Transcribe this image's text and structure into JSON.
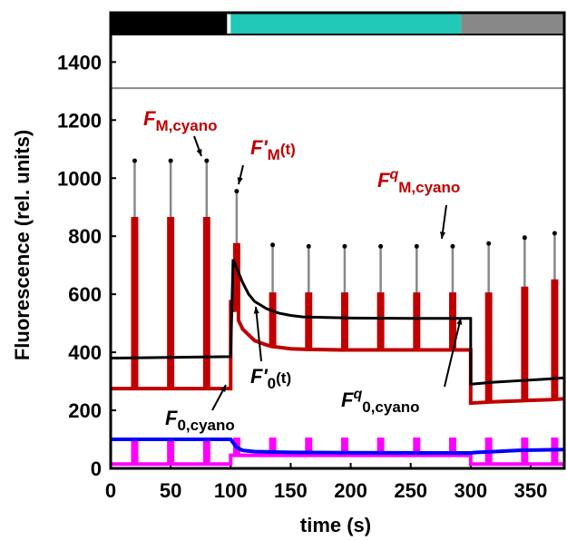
{
  "chart_data": {
    "type": "line",
    "xlabel": "time (s)",
    "ylabel": "Fluorescence (rel. units)",
    "xlim": [
      0,
      378
    ],
    "ylim": [
      0,
      1570
    ],
    "xticks": [
      0,
      50,
      100,
      150,
      200,
      250,
      300,
      350
    ],
    "yticks": [
      0,
      200,
      400,
      600,
      800,
      1000,
      1200,
      1400
    ],
    "light_periods": {
      "start": [
        0,
        100,
        292
      ],
      "end": [
        97,
        292,
        378
      ],
      "color": [
        "#000000",
        "#22c8b8",
        "#888888"
      ]
    },
    "series": [
      {
        "color": "#888888",
        "width": 2,
        "x": [
          0,
          378
        ],
        "values": [
          1310,
          1310
        ]
      },
      {
        "color": "#c00000",
        "width": 4,
        "x": [
          0,
          18.5,
          18.5,
          21.5,
          21.5,
          48.5,
          48.5,
          51.5,
          51.5,
          78.5,
          78.5,
          81.5,
          81.5,
          100,
          100,
          103.5,
          103.5,
          106.5,
          106.5,
          110,
          120,
          130,
          133.5,
          133.5,
          136.5,
          136.5,
          150,
          163.5,
          163.5,
          166.5,
          166.5,
          193.5,
          193.5,
          196.5,
          196.5,
          223.5,
          223.5,
          226.5,
          226.5,
          253.5,
          253.5,
          256.5,
          256.5,
          283.5,
          283.5,
          286.5,
          286.5,
          300,
          300,
          313.5,
          313.5,
          316.5,
          316.5,
          343.5,
          343.5,
          346.5,
          346.5,
          368.5,
          368.5,
          371.5,
          371.5,
          378
        ],
        "values": [
          275,
          275,
          860,
          860,
          275,
          275,
          860,
          860,
          275,
          275,
          860,
          860,
          275,
          275,
          580,
          540,
          770,
          770,
          510,
          480,
          440,
          425,
          421,
          600,
          600,
          419,
          412,
          410,
          600,
          600,
          410,
          408,
          600,
          600,
          408,
          408,
          600,
          600,
          408,
          408,
          600,
          600,
          408,
          408,
          600,
          600,
          408,
          408,
          225,
          228,
          600,
          600,
          229,
          233,
          620,
          620,
          234,
          237,
          645,
          645,
          238,
          240
        ]
      },
      {
        "color": "#000000",
        "width": 3,
        "x": [
          0,
          100,
          102,
          105,
          110,
          115,
          120,
          130,
          140,
          150,
          160,
          180,
          200,
          250,
          300,
          300,
          320,
          340,
          360,
          378
        ],
        "values": [
          380,
          385,
          720,
          690,
          640,
          600,
          575,
          550,
          535,
          527,
          522,
          520,
          518,
          517,
          517,
          290,
          297,
          302,
          307,
          312
        ]
      },
      {
        "color": "#0000ff",
        "width": 4,
        "x": [
          0,
          100,
          105,
          110,
          120,
          150,
          200,
          300,
          305,
          320,
          340,
          378
        ],
        "values": [
          100,
          100,
          72,
          62,
          58,
          55,
          54,
          53,
          55,
          58,
          62,
          65
        ]
      },
      {
        "color": "#ff00ff",
        "width": 4,
        "x": [
          0,
          18.5,
          18.5,
          21.5,
          21.5,
          48.5,
          48.5,
          51.5,
          51.5,
          78.5,
          78.5,
          81.5,
          81.5,
          100,
          100,
          103.5,
          103.5,
          106.5,
          106.5,
          133.5,
          133.5,
          136.5,
          136.5,
          163.5,
          163.5,
          166.5,
          166.5,
          193.5,
          193.5,
          196.5,
          196.5,
          223.5,
          223.5,
          226.5,
          226.5,
          253.5,
          253.5,
          256.5,
          256.5,
          283.5,
          283.5,
          286.5,
          286.5,
          300,
          300,
          313.5,
          313.5,
          316.5,
          316.5,
          343.5,
          343.5,
          346.5,
          346.5,
          368.5,
          368.5,
          371.5,
          371.5,
          378
        ],
        "values": [
          15,
          15,
          100,
          100,
          15,
          15,
          100,
          100,
          15,
          15,
          100,
          100,
          15,
          15,
          45,
          45,
          100,
          100,
          45,
          45,
          100,
          100,
          45,
          45,
          100,
          100,
          45,
          45,
          100,
          100,
          45,
          45,
          100,
          100,
          45,
          45,
          100,
          100,
          45,
          45,
          100,
          100,
          45,
          45,
          15,
          15,
          100,
          100,
          15,
          15,
          100,
          100,
          15,
          15,
          100,
          100,
          15,
          15
        ]
      }
    ],
    "peaks": {
      "color": "#888888",
      "x": [
        20,
        50,
        80,
        105,
        135,
        165,
        195,
        225,
        255,
        285,
        315,
        345,
        370
      ],
      "values": [
        1060,
        1060,
        1060,
        955,
        770,
        765,
        765,
        765,
        765,
        765,
        775,
        795,
        810
      ]
    },
    "annotations": [
      {
        "color": "#c00000",
        "base": "F",
        "sub": "M,cyano"
      },
      {
        "color": "#c00000",
        "base": "F'",
        "sub": "M",
        "tail": "(t)"
      },
      {
        "color": "#c00000",
        "base": "F",
        "sup": "q",
        "sub": "M,cyano"
      },
      {
        "color": "#000000",
        "base": "F'",
        "sub": "0",
        "tail": "(t)"
      },
      {
        "color": "#000000",
        "base": "F",
        "sup": "q",
        "sub": "0,cyano"
      },
      {
        "color": "#000000",
        "base": "F",
        "sub": "0,cyano"
      }
    ]
  }
}
